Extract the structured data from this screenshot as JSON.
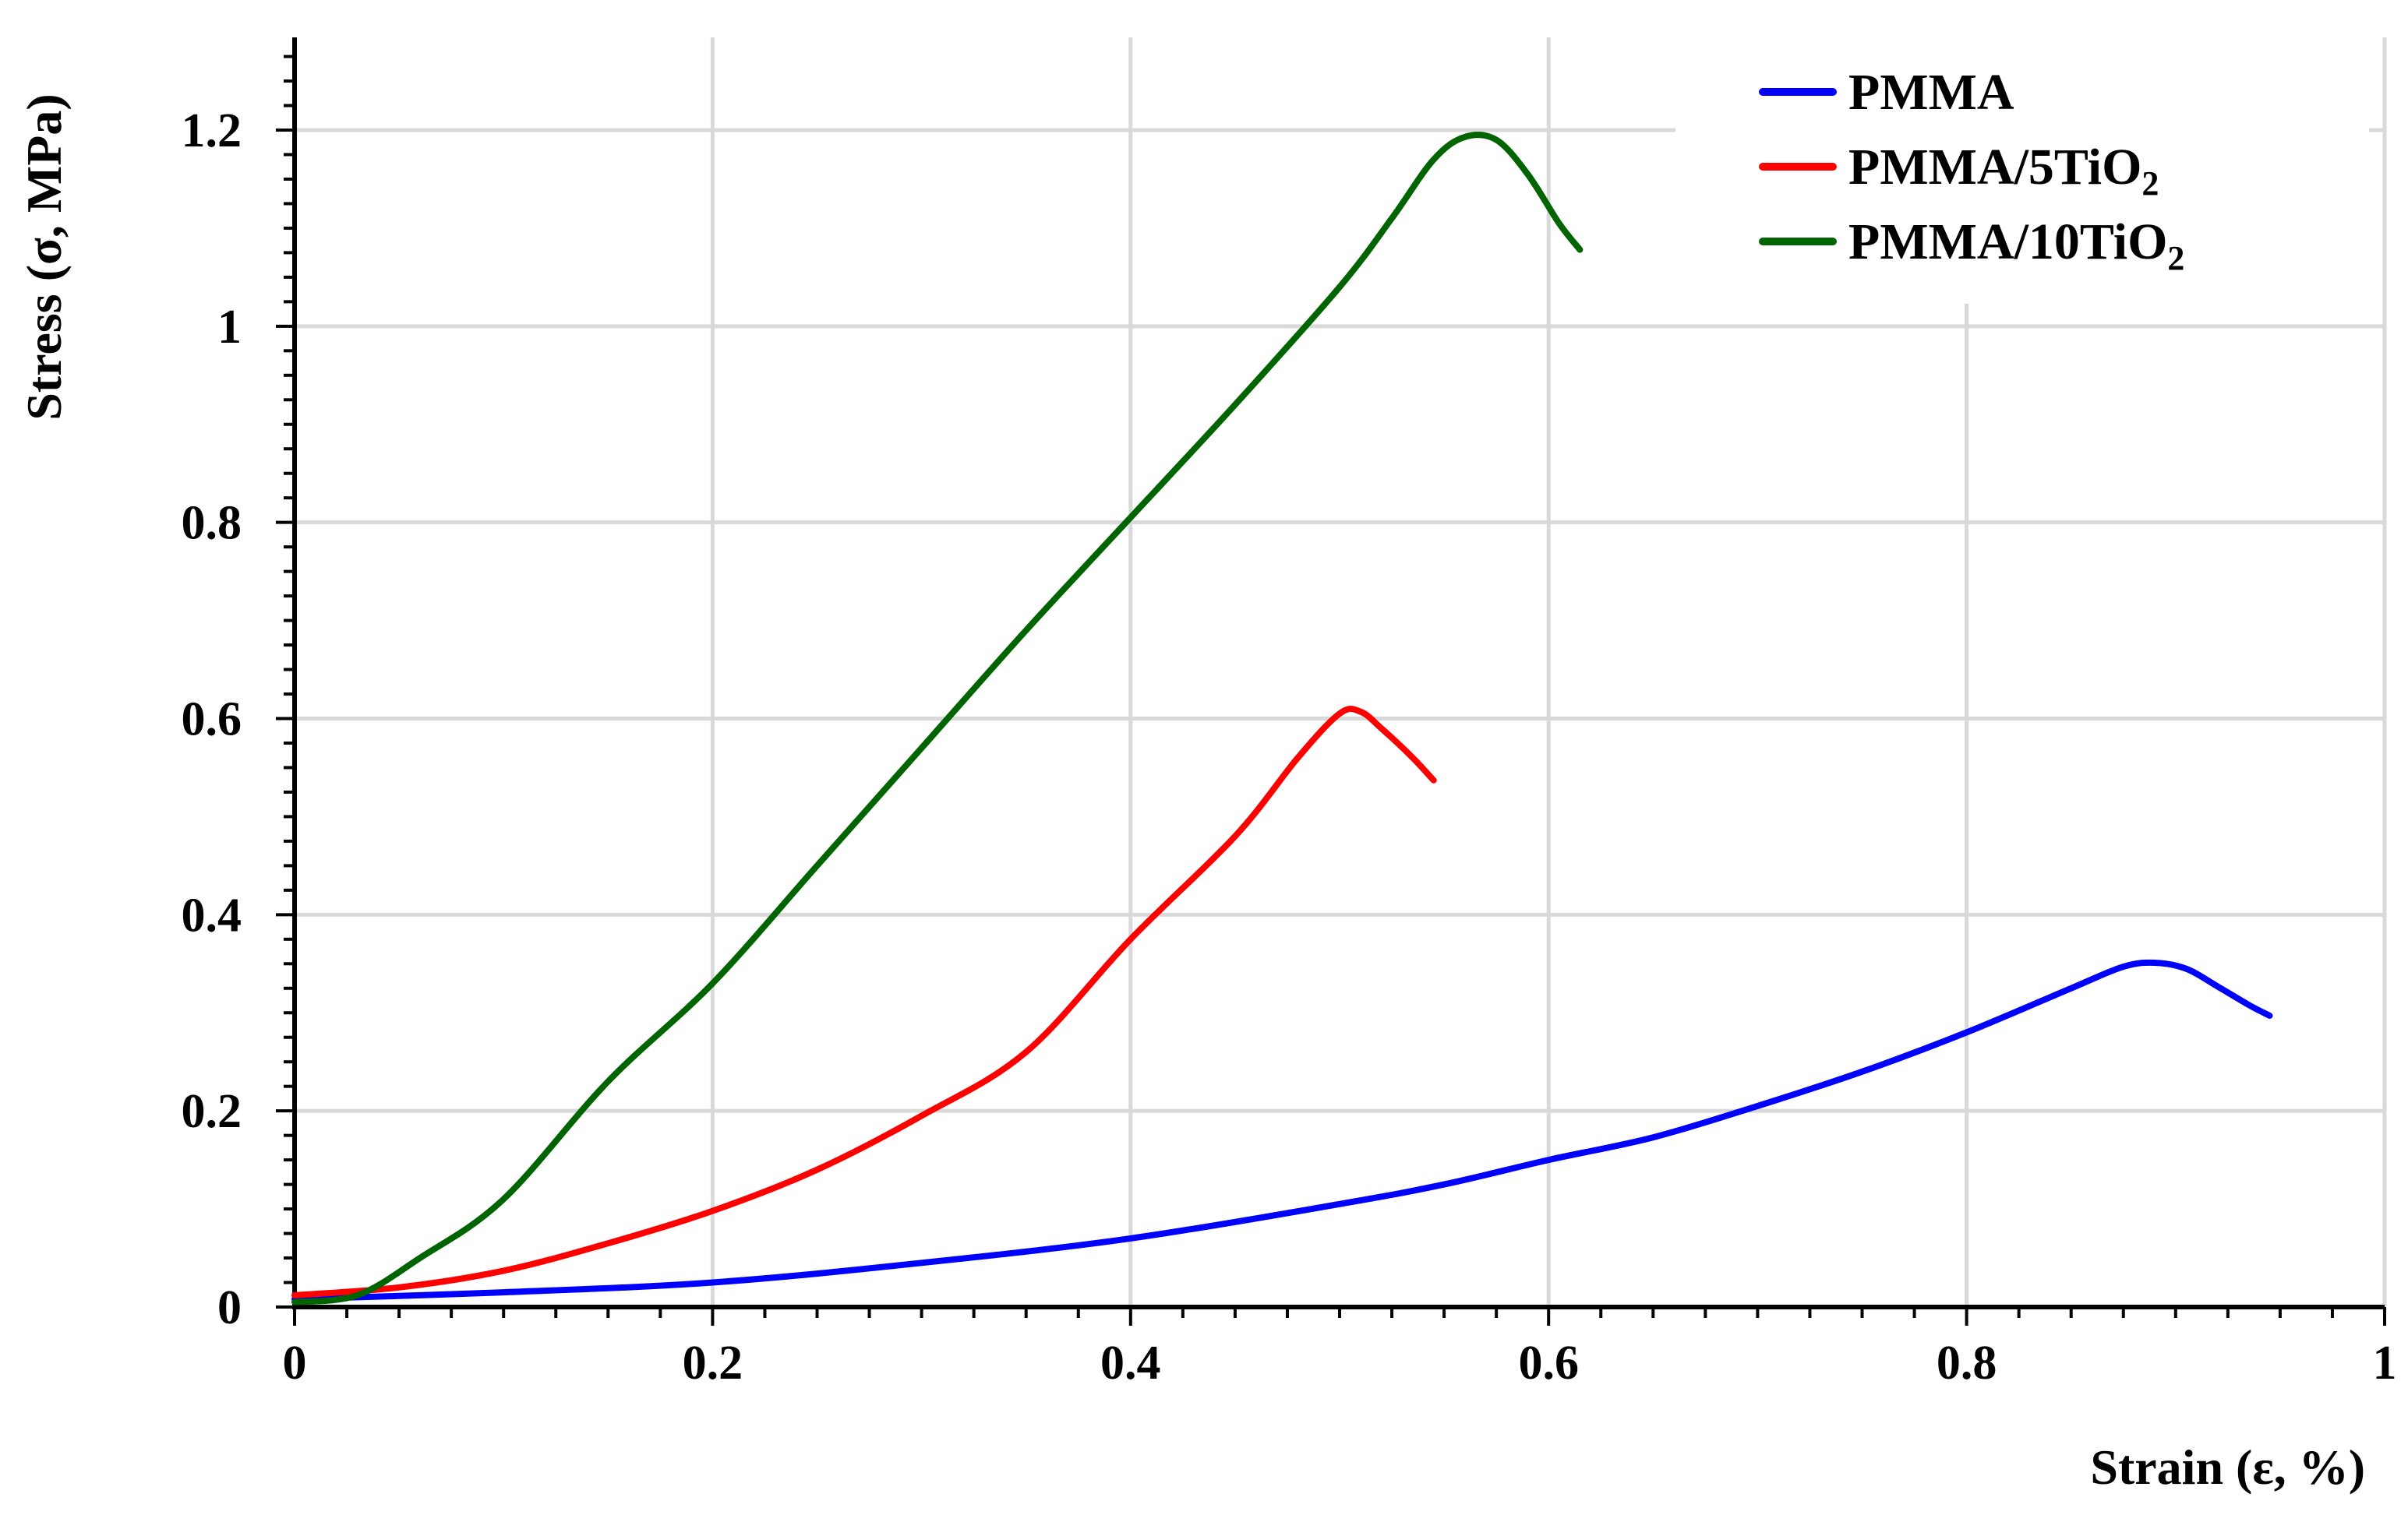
{
  "chart_data": {
    "type": "line",
    "title": "",
    "xlabel": "Strain (ε, %)",
    "ylabel": "Stress (σ, MPa)",
    "xlim": [
      0,
      1
    ],
    "ylim": [
      0,
      1.2
    ],
    "x_ticks": [
      "0",
      "0.2",
      "0.4",
      "0.6",
      "0.8",
      "1"
    ],
    "y_ticks": [
      "0",
      "0.2",
      "0.4",
      "0.6",
      "0.8",
      "1",
      "1.2"
    ],
    "grid": true,
    "legend_position": "top-right",
    "series": [
      {
        "name": "PMMA",
        "legend_main": "PMMA",
        "legend_sub": "",
        "legend_tail": "",
        "color": "#0000ff",
        "points": [
          [
            0,
            0.008
          ],
          [
            0.1,
            0.015
          ],
          [
            0.2,
            0.025
          ],
          [
            0.3,
            0.045
          ],
          [
            0.4,
            0.07
          ],
          [
            0.5,
            0.105
          ],
          [
            0.55,
            0.125
          ],
          [
            0.6,
            0.15
          ],
          [
            0.65,
            0.173
          ],
          [
            0.7,
            0.205
          ],
          [
            0.75,
            0.24
          ],
          [
            0.8,
            0.28
          ],
          [
            0.85,
            0.325
          ],
          [
            0.875,
            0.347
          ],
          [
            0.89,
            0.351
          ],
          [
            0.905,
            0.345
          ],
          [
            0.92,
            0.327
          ],
          [
            0.935,
            0.308
          ],
          [
            0.945,
            0.297
          ]
        ]
      },
      {
        "name": "PMMA/5TiO2",
        "legend_main": "PMMA/5TiO",
        "legend_sub": "2",
        "legend_tail": "",
        "color": "#ff0000",
        "points": [
          [
            0,
            0.012
          ],
          [
            0.05,
            0.02
          ],
          [
            0.1,
            0.037
          ],
          [
            0.15,
            0.065
          ],
          [
            0.2,
            0.098
          ],
          [
            0.25,
            0.14
          ],
          [
            0.3,
            0.195
          ],
          [
            0.35,
            0.26
          ],
          [
            0.4,
            0.375
          ],
          [
            0.45,
            0.48
          ],
          [
            0.48,
            0.56
          ],
          [
            0.5,
            0.605
          ],
          [
            0.51,
            0.607
          ],
          [
            0.52,
            0.59
          ],
          [
            0.535,
            0.56
          ],
          [
            0.545,
            0.537
          ]
        ]
      },
      {
        "name": "PMMA/10TiO2",
        "legend_main": "PMMA/10TiO",
        "legend_sub": "2",
        "legend_tail": "",
        "color": "#006400",
        "points": [
          [
            0,
            0.005
          ],
          [
            0.03,
            0.012
          ],
          [
            0.06,
            0.05
          ],
          [
            0.1,
            0.11
          ],
          [
            0.15,
            0.23
          ],
          [
            0.2,
            0.33
          ],
          [
            0.25,
            0.45
          ],
          [
            0.3,
            0.57
          ],
          [
            0.35,
            0.69
          ],
          [
            0.4,
            0.805
          ],
          [
            0.45,
            0.92
          ],
          [
            0.5,
            1.04
          ],
          [
            0.525,
            1.11
          ],
          [
            0.545,
            1.17
          ],
          [
            0.56,
            1.193
          ],
          [
            0.575,
            1.19
          ],
          [
            0.59,
            1.155
          ],
          [
            0.605,
            1.105
          ],
          [
            0.615,
            1.078
          ]
        ]
      }
    ]
  }
}
